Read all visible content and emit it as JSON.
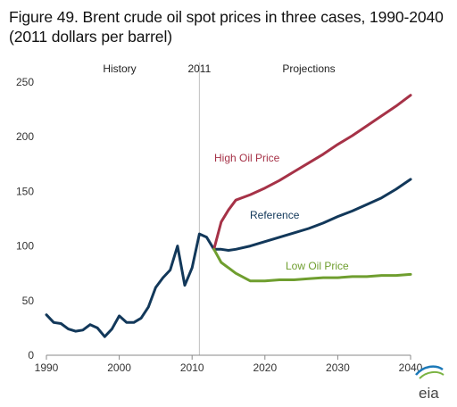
{
  "title": "Figure 49. Brent crude oil spot prices in three cases, 1990-2040 (2011 dollars per barrel)",
  "logo": "eia",
  "colors": {
    "history": "#12385a",
    "reference": "#12385a",
    "high": "#a63247",
    "low": "#6f9e2f",
    "divider": "#bfbfbf",
    "axis": "#888888"
  },
  "chart_data": {
    "type": "line",
    "xlim": [
      1990,
      2040
    ],
    "ylim": [
      0,
      250
    ],
    "x_ticks": [
      1990,
      2000,
      2010,
      2020,
      2030,
      2040
    ],
    "y_ticks": [
      0,
      50,
      100,
      150,
      200,
      250
    ],
    "grid": false,
    "divider_year": 2011,
    "section_labels": {
      "history": "History",
      "divider": "2011",
      "projections": "Projections"
    },
    "series": [
      {
        "key": "history",
        "x": [
          1990,
          1991,
          1992,
          1993,
          1994,
          1995,
          1996,
          1997,
          1998,
          1999,
          2000,
          2001,
          2002,
          2003,
          2004,
          2005,
          2006,
          2007,
          2008,
          2009,
          2010,
          2011,
          2012,
          2013
        ],
        "y": [
          37,
          30,
          29,
          24,
          22,
          23,
          28,
          25,
          17,
          24,
          36,
          30,
          30,
          34,
          44,
          62,
          71,
          78,
          100,
          64,
          80,
          111,
          108,
          97
        ]
      },
      {
        "key": "reference",
        "name": "Reference",
        "x": [
          2013,
          2014,
          2015,
          2016,
          2018,
          2020,
          2022,
          2024,
          2026,
          2028,
          2030,
          2032,
          2034,
          2036,
          2038,
          2040
        ],
        "y": [
          97,
          97,
          96,
          97,
          100,
          104,
          108,
          112,
          116,
          121,
          127,
          132,
          138,
          144,
          152,
          161
        ]
      },
      {
        "key": "high",
        "name": "High Oil Price",
        "x": [
          2013,
          2014,
          2015,
          2016,
          2018,
          2020,
          2022,
          2024,
          2026,
          2028,
          2030,
          2032,
          2034,
          2036,
          2038,
          2040
        ],
        "y": [
          97,
          122,
          133,
          142,
          147,
          153,
          160,
          168,
          176,
          184,
          193,
          201,
          210,
          219,
          228,
          238
        ]
      },
      {
        "key": "low",
        "name": "Low Oil Price",
        "x": [
          2013,
          2014,
          2015,
          2016,
          2018,
          2020,
          2022,
          2024,
          2026,
          2028,
          2030,
          2032,
          2034,
          2036,
          2038,
          2040
        ],
        "y": [
          97,
          85,
          80,
          75,
          68,
          68,
          69,
          69,
          70,
          71,
          71,
          72,
          72,
          73,
          73,
          74
        ]
      }
    ]
  }
}
